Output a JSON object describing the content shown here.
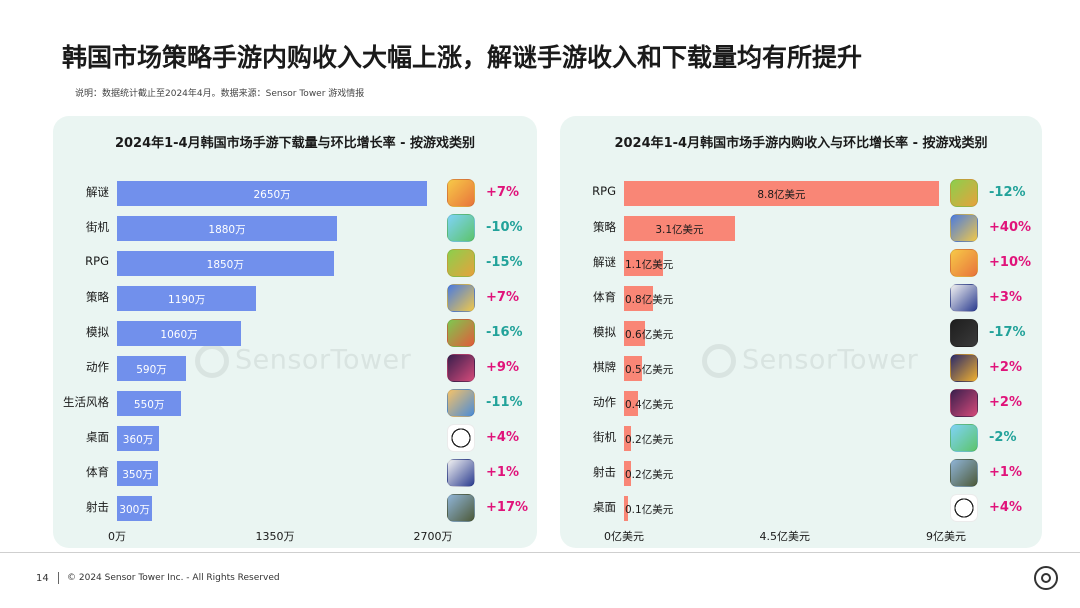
{
  "header": {
    "title": "韩国市场策略手游内购收入大幅上涨，解谜手游收入和下载量均有所提升",
    "note": "说明：数据统计截止至2024年4月。数据来源：Sensor Tower 游戏情报"
  },
  "watermark": "SensorTower",
  "chart_data": [
    {
      "type": "bar",
      "orientation": "horizontal",
      "title": "2024年1-4月韩国市场手游下载量与环比增长率 - 按游戏类别",
      "categories": [
        "解谜",
        "街机",
        "RPG",
        "策略",
        "模拟",
        "动作",
        "生活风格",
        "桌面",
        "体育",
        "射击"
      ],
      "values": [
        2650,
        1880,
        1850,
        1190,
        1060,
        590,
        550,
        360,
        350,
        300
      ],
      "value_labels": [
        "2650万",
        "1880万",
        "1850万",
        "1190万",
        "1060万",
        "590万",
        "550万",
        "360万",
        "350万",
        "300万"
      ],
      "growth_labels": [
        "+7%",
        "-10%",
        "-15%",
        "+7%",
        "-16%",
        "+9%",
        "-11%",
        "+4%",
        "+1%",
        "+17%"
      ],
      "icons": [
        "puzzle-game-icon",
        "arcade-game-icon",
        "rpg-game-icon",
        "strategy-game-icon",
        "simulation-game-icon",
        "action-game-icon",
        "lifestyle-game-icon",
        "board-game-icon",
        "sports-game-icon",
        "shooter-game-icon"
      ],
      "xlim": [
        0,
        2700
      ],
      "xticks": [
        "0万",
        "1350万",
        "2700万"
      ],
      "bar_color": "#7190ec"
    },
    {
      "type": "bar",
      "orientation": "horizontal",
      "title": "2024年1-4月韩国市场手游内购收入与环比增长率 - 按游戏类别",
      "categories": [
        "RPG",
        "策略",
        "解谜",
        "体育",
        "模拟",
        "棋牌",
        "动作",
        "街机",
        "射击",
        "桌面"
      ],
      "values": [
        8.8,
        3.1,
        1.1,
        0.8,
        0.6,
        0.5,
        0.4,
        0.2,
        0.2,
        0.1
      ],
      "value_labels": [
        "8.8亿美元",
        "3.1亿美元",
        "1.1亿美元",
        "0.8亿美元",
        "0.6亿美元",
        "0.5亿美元",
        "0.4亿美元",
        "0.2亿美元",
        "0.2亿美元",
        "0.1亿美元"
      ],
      "growth_labels": [
        "-12%",
        "+40%",
        "+10%",
        "+3%",
        "-17%",
        "+2%",
        "+2%",
        "-2%",
        "+1%",
        "+4%"
      ],
      "icons": [
        "rpg-game-icon",
        "strategy-game-icon",
        "puzzle-game-icon",
        "sports-game-icon",
        "roblox-icon",
        "card-game-icon",
        "action-game-icon",
        "arcade-game-icon",
        "shooter-game-icon",
        "board-game-icon"
      ],
      "xlim": [
        0,
        9
      ],
      "xticks": [
        "0亿美元",
        "4.5亿美元",
        "9亿美元"
      ],
      "bar_color": "#f98676"
    }
  ],
  "footer": {
    "page": "14",
    "copyright": "© 2024 Sensor Tower Inc. - All Rights Reserved"
  },
  "colors": {
    "positive": "#e0137a",
    "negative": "#22a29a",
    "panel": "#eaf5f2"
  }
}
